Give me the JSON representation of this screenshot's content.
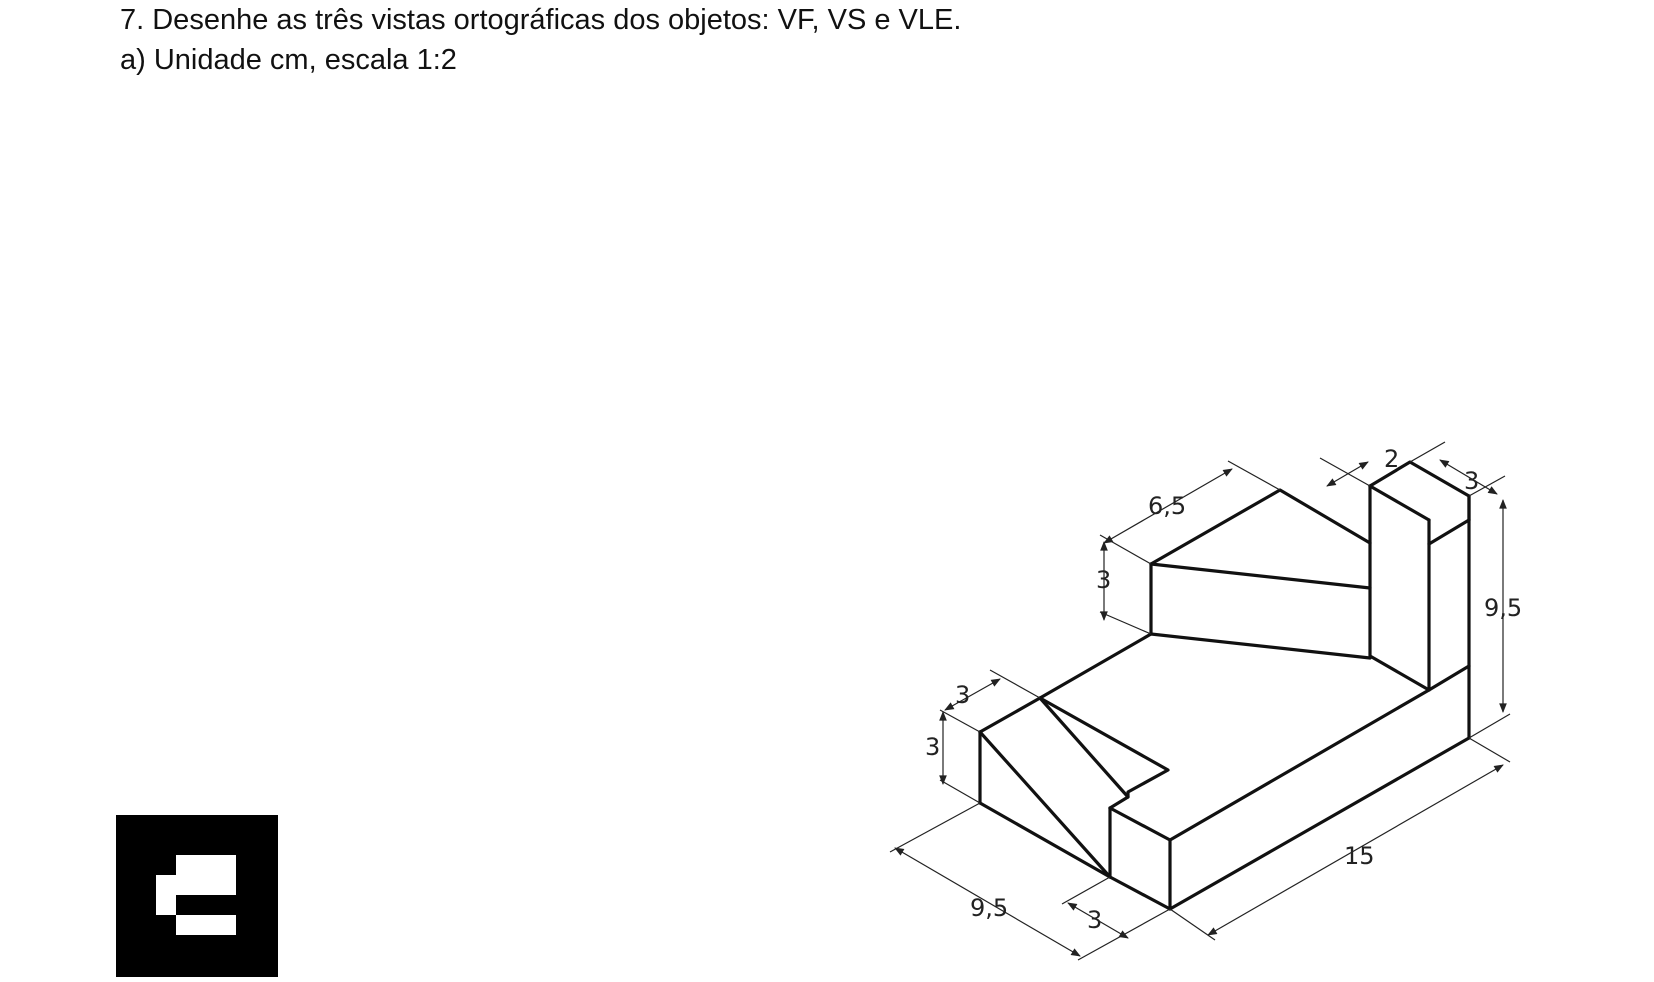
{
  "question": {
    "statement": "7. Desenhe as três vistas ortográficas dos objetos: VF, VS e VLE.",
    "item_a": "a) Unidade cm, escala 1:2"
  },
  "drawing": {
    "dimensions": {
      "d_6_5": "6,5",
      "d_2": "2",
      "d_3_top_right": "3",
      "d_3_upper_left": "3",
      "d_9_5_right": "9,5",
      "d_3_step_width": "3",
      "d_3_step_height": "3",
      "d_15": "15",
      "d_9_5_bottom": "9,5",
      "d_3_bottom": "3"
    }
  },
  "marker": {
    "colors": {
      "background": "#000000",
      "foreground": "#ffffff"
    }
  }
}
